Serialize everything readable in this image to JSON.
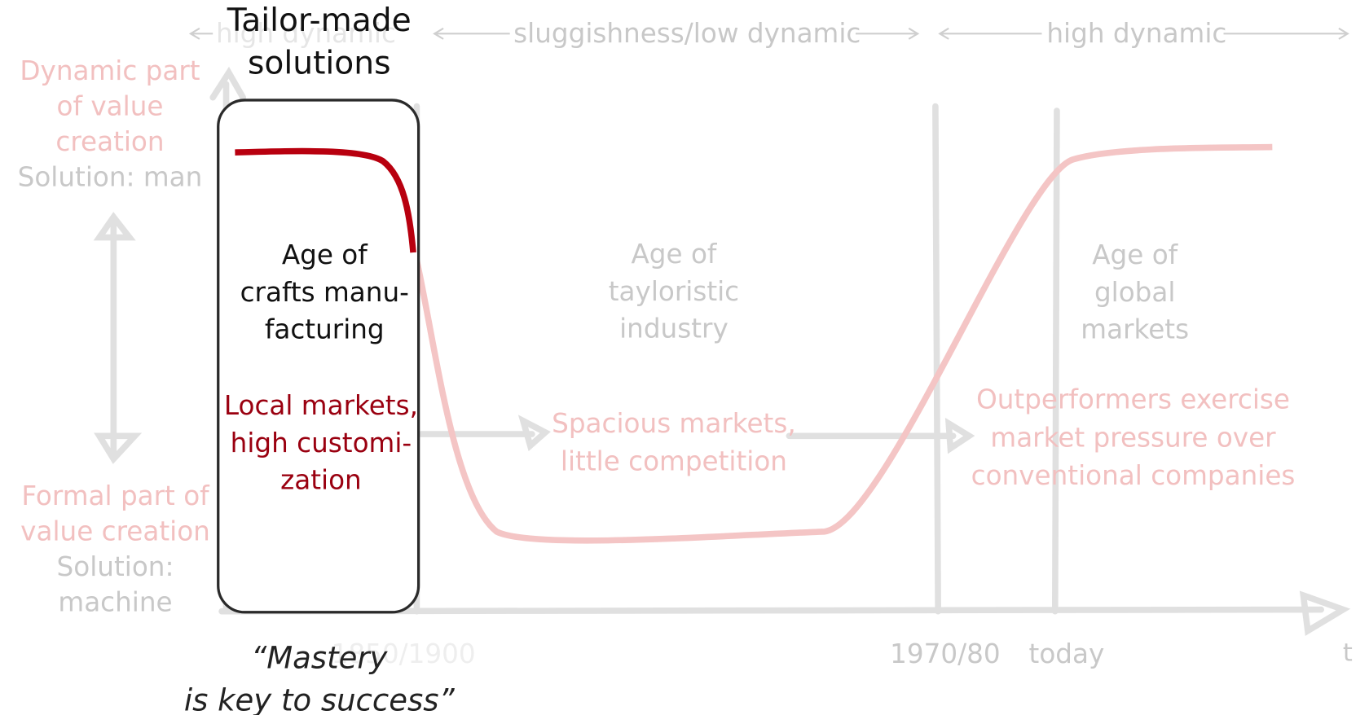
{
  "header": {
    "title_lines": [
      "Tailor-made",
      "solutions"
    ]
  },
  "phases": [
    "high dynamic",
    "sluggishness/low dynamic",
    "high dynamic"
  ],
  "y_axis": {
    "top_lines": [
      "Dynamic part",
      "of value",
      "creation",
      "Solution: man"
    ],
    "bottom_lines": [
      "Formal part of",
      "value creation",
      "Solution:",
      "machine"
    ]
  },
  "ages": [
    {
      "title_lines": [
        "Age of",
        "crafts manu-",
        "facturing"
      ],
      "market_lines": [
        "Local markets,",
        "high customi-",
        "zation"
      ]
    },
    {
      "title_lines": [
        "Age of",
        "tayloristic",
        "industry"
      ],
      "market_lines": [
        "Spacious markets,",
        "little competition"
      ]
    },
    {
      "title_lines": [
        "Age of",
        "global",
        "markets"
      ],
      "market_lines": [
        "Outperformers exercise",
        "market pressure over",
        "conventional companies"
      ]
    }
  ],
  "x_axis": {
    "labels": [
      "1850/1900",
      "1970/80",
      "today"
    ],
    "end": "t"
  },
  "quote_lines": [
    "“Mastery",
    "is key to success”"
  ]
}
